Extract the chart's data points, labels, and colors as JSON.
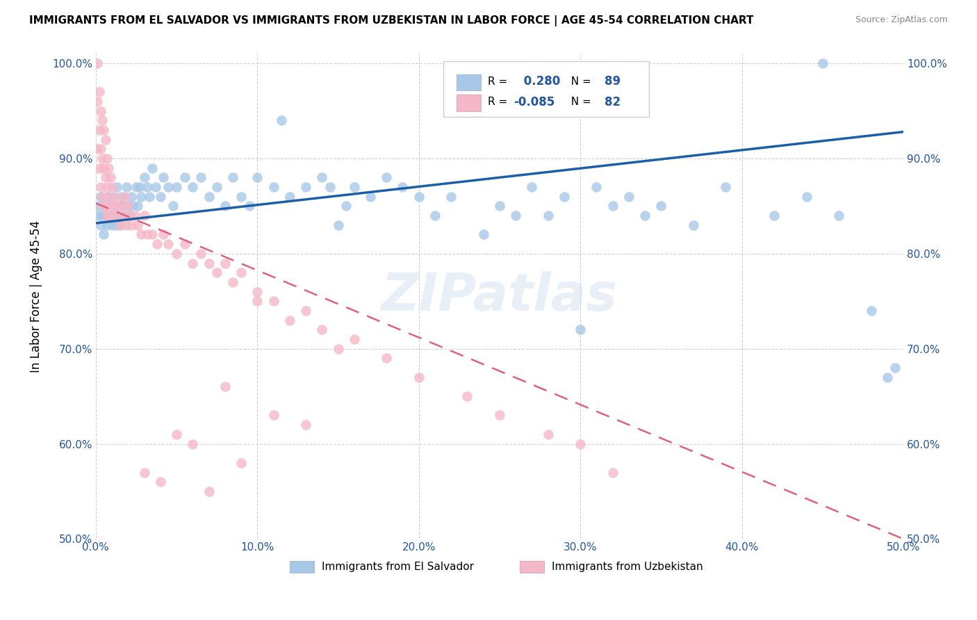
{
  "title": "IMMIGRANTS FROM EL SALVADOR VS IMMIGRANTS FROM UZBEKISTAN IN LABOR FORCE | AGE 45-54 CORRELATION CHART",
  "source": "Source: ZipAtlas.com",
  "ylabel": "In Labor Force | Age 45-54",
  "xmin": 0.0,
  "xmax": 0.5,
  "ymin": 0.5,
  "ymax": 1.01,
  "r_salvador": 0.28,
  "n_salvador": 89,
  "r_uzbekistan": -0.085,
  "n_uzbekistan": 82,
  "color_salvador": "#a8c8e8",
  "color_salvador_line": "#1a5fa8",
  "color_uzbekistan": "#f5b8c8",
  "color_uzbekistan_line": "#e06080",
  "yticks": [
    0.5,
    0.6,
    0.7,
    0.8,
    0.9,
    1.0
  ],
  "ytick_labels": [
    "50.0%",
    "60.0%",
    "70.0%",
    "80.0%",
    "90.0%",
    "100.0%"
  ],
  "xticks": [
    0.0,
    0.1,
    0.2,
    0.3,
    0.4,
    0.5
  ],
  "xtick_labels": [
    "0.0%",
    "10.0%",
    "20.0%",
    "30.0%",
    "40.0%",
    "50.0%"
  ],
  "el_salvador_x": [
    0.001,
    0.002,
    0.003,
    0.003,
    0.004,
    0.005,
    0.005,
    0.006,
    0.007,
    0.007,
    0.008,
    0.009,
    0.01,
    0.01,
    0.011,
    0.012,
    0.013,
    0.013,
    0.014,
    0.015,
    0.015,
    0.016,
    0.017,
    0.018,
    0.019,
    0.02,
    0.021,
    0.022,
    0.023,
    0.025,
    0.026,
    0.027,
    0.028,
    0.03,
    0.032,
    0.033,
    0.035,
    0.037,
    0.04,
    0.042,
    0.045,
    0.048,
    0.05,
    0.055,
    0.06,
    0.065,
    0.07,
    0.075,
    0.08,
    0.085,
    0.09,
    0.095,
    0.1,
    0.11,
    0.115,
    0.12,
    0.13,
    0.14,
    0.145,
    0.15,
    0.155,
    0.16,
    0.17,
    0.18,
    0.19,
    0.2,
    0.21,
    0.22,
    0.24,
    0.25,
    0.26,
    0.27,
    0.28,
    0.29,
    0.3,
    0.31,
    0.32,
    0.33,
    0.34,
    0.35,
    0.37,
    0.39,
    0.42,
    0.44,
    0.46,
    0.48,
    0.49,
    0.495,
    0.45
  ],
  "el_salvador_y": [
    0.84,
    0.85,
    0.83,
    0.86,
    0.84,
    0.82,
    0.85,
    0.84,
    0.86,
    0.83,
    0.85,
    0.84,
    0.83,
    0.86,
    0.84,
    0.85,
    0.83,
    0.87,
    0.84,
    0.85,
    0.83,
    0.86,
    0.85,
    0.84,
    0.87,
    0.85,
    0.84,
    0.86,
    0.85,
    0.87,
    0.85,
    0.87,
    0.86,
    0.88,
    0.87,
    0.86,
    0.89,
    0.87,
    0.86,
    0.88,
    0.87,
    0.85,
    0.87,
    0.88,
    0.87,
    0.88,
    0.86,
    0.87,
    0.85,
    0.88,
    0.86,
    0.85,
    0.88,
    0.87,
    0.94,
    0.86,
    0.87,
    0.88,
    0.87,
    0.83,
    0.85,
    0.87,
    0.86,
    0.88,
    0.87,
    0.86,
    0.84,
    0.86,
    0.82,
    0.85,
    0.84,
    0.87,
    0.84,
    0.86,
    0.72,
    0.87,
    0.85,
    0.86,
    0.84,
    0.85,
    0.83,
    0.87,
    0.84,
    0.86,
    0.84,
    0.74,
    0.67,
    0.68,
    1.0
  ],
  "uzbekistan_x": [
    0.001,
    0.001,
    0.001,
    0.002,
    0.002,
    0.002,
    0.003,
    0.003,
    0.003,
    0.004,
    0.004,
    0.004,
    0.005,
    0.005,
    0.005,
    0.006,
    0.006,
    0.006,
    0.007,
    0.007,
    0.007,
    0.008,
    0.008,
    0.008,
    0.009,
    0.009,
    0.01,
    0.01,
    0.011,
    0.012,
    0.013,
    0.014,
    0.015,
    0.016,
    0.017,
    0.018,
    0.019,
    0.02,
    0.021,
    0.022,
    0.024,
    0.026,
    0.028,
    0.03,
    0.032,
    0.035,
    0.038,
    0.042,
    0.045,
    0.05,
    0.055,
    0.06,
    0.065,
    0.07,
    0.075,
    0.08,
    0.085,
    0.09,
    0.1,
    0.11,
    0.12,
    0.13,
    0.14,
    0.15,
    0.16,
    0.18,
    0.2,
    0.23,
    0.25,
    0.28,
    0.3,
    0.32,
    0.03,
    0.04,
    0.05,
    0.06,
    0.07,
    0.08,
    0.09,
    0.1,
    0.11,
    0.13
  ],
  "uzbekistan_y": [
    1.0,
    0.96,
    0.91,
    0.97,
    0.93,
    0.89,
    0.95,
    0.91,
    0.87,
    0.94,
    0.9,
    0.86,
    0.93,
    0.89,
    0.85,
    0.92,
    0.88,
    0.85,
    0.9,
    0.87,
    0.84,
    0.89,
    0.86,
    0.84,
    0.88,
    0.85,
    0.87,
    0.84,
    0.85,
    0.86,
    0.84,
    0.85,
    0.83,
    0.85,
    0.84,
    0.86,
    0.83,
    0.85,
    0.84,
    0.83,
    0.84,
    0.83,
    0.82,
    0.84,
    0.82,
    0.82,
    0.81,
    0.82,
    0.81,
    0.8,
    0.81,
    0.79,
    0.8,
    0.79,
    0.78,
    0.79,
    0.77,
    0.78,
    0.76,
    0.75,
    0.73,
    0.74,
    0.72,
    0.7,
    0.71,
    0.69,
    0.67,
    0.65,
    0.63,
    0.61,
    0.6,
    0.57,
    0.57,
    0.56,
    0.61,
    0.6,
    0.55,
    0.66,
    0.58,
    0.75,
    0.63,
    0.62
  ]
}
